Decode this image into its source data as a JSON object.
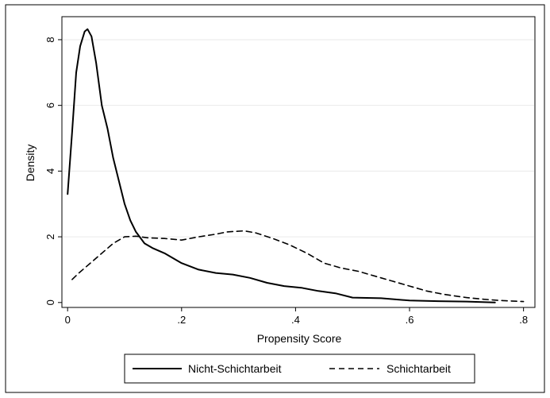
{
  "chart_data": {
    "type": "line",
    "xlabel": "Propensity Score",
    "ylabel": "Density",
    "xlim": [
      -0.01,
      0.82
    ],
    "ylim": [
      -0.15,
      8.7
    ],
    "x_ticks": [
      {
        "value": 0,
        "label": "0"
      },
      {
        "value": 0.2,
        "label": ".2"
      },
      {
        "value": 0.4,
        "label": ".4"
      },
      {
        "value": 0.6,
        "label": ".6"
      },
      {
        "value": 0.8,
        "label": ".8"
      }
    ],
    "y_ticks": [
      {
        "value": 0,
        "label": "0"
      },
      {
        "value": 2,
        "label": "2"
      },
      {
        "value": 4,
        "label": "4"
      },
      {
        "value": 6,
        "label": "6"
      },
      {
        "value": 8,
        "label": "8"
      }
    ],
    "grid": "horizontal",
    "legend_position": "bottom",
    "series": [
      {
        "name": "Nicht-Schichtarbeit",
        "style": "solid",
        "color": "#000000",
        "points": [
          [
            0.0,
            3.3
          ],
          [
            0.008,
            5.2
          ],
          [
            0.015,
            7.0
          ],
          [
            0.022,
            7.8
          ],
          [
            0.03,
            8.25
          ],
          [
            0.035,
            8.32
          ],
          [
            0.042,
            8.1
          ],
          [
            0.05,
            7.3
          ],
          [
            0.06,
            6.0
          ],
          [
            0.07,
            5.3
          ],
          [
            0.08,
            4.4
          ],
          [
            0.09,
            3.7
          ],
          [
            0.1,
            3.0
          ],
          [
            0.11,
            2.5
          ],
          [
            0.12,
            2.15
          ],
          [
            0.135,
            1.8
          ],
          [
            0.15,
            1.65
          ],
          [
            0.17,
            1.5
          ],
          [
            0.2,
            1.2
          ],
          [
            0.23,
            1.0
          ],
          [
            0.26,
            0.9
          ],
          [
            0.29,
            0.85
          ],
          [
            0.32,
            0.75
          ],
          [
            0.35,
            0.6
          ],
          [
            0.38,
            0.5
          ],
          [
            0.41,
            0.45
          ],
          [
            0.44,
            0.35
          ],
          [
            0.47,
            0.28
          ],
          [
            0.5,
            0.15
          ],
          [
            0.55,
            0.13
          ],
          [
            0.6,
            0.06
          ],
          [
            0.65,
            0.04
          ],
          [
            0.7,
            0.03
          ],
          [
            0.75,
            0.0
          ]
        ]
      },
      {
        "name": "Schichtarbeit",
        "style": "dashed",
        "color": "#000000",
        "points": [
          [
            0.008,
            0.7
          ],
          [
            0.02,
            0.9
          ],
          [
            0.05,
            1.35
          ],
          [
            0.08,
            1.8
          ],
          [
            0.1,
            2.0
          ],
          [
            0.12,
            2.02
          ],
          [
            0.14,
            1.97
          ],
          [
            0.17,
            1.95
          ],
          [
            0.2,
            1.9
          ],
          [
            0.23,
            2.0
          ],
          [
            0.26,
            2.08
          ],
          [
            0.28,
            2.15
          ],
          [
            0.31,
            2.18
          ],
          [
            0.33,
            2.12
          ],
          [
            0.36,
            1.95
          ],
          [
            0.39,
            1.75
          ],
          [
            0.42,
            1.5
          ],
          [
            0.45,
            1.2
          ],
          [
            0.48,
            1.05
          ],
          [
            0.51,
            0.95
          ],
          [
            0.54,
            0.8
          ],
          [
            0.57,
            0.65
          ],
          [
            0.6,
            0.5
          ],
          [
            0.63,
            0.35
          ],
          [
            0.66,
            0.25
          ],
          [
            0.7,
            0.15
          ],
          [
            0.73,
            0.1
          ],
          [
            0.76,
            0.06
          ],
          [
            0.8,
            0.03
          ]
        ]
      }
    ]
  }
}
